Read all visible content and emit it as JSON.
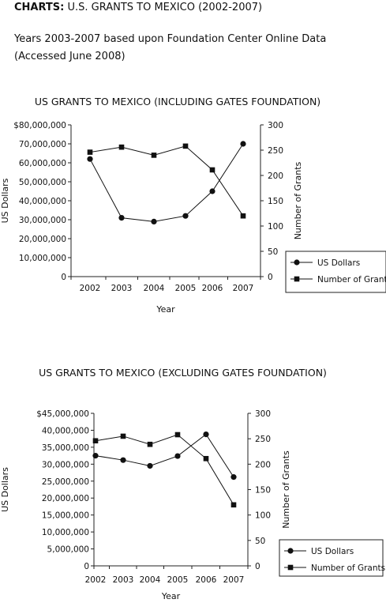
{
  "header": {
    "label_bold": "CHARTS:",
    "label_rest": " U.S. GRANTS TO MEXICO (2002-2007)",
    "source_line1": "Years 2003-2007 based upon Foundation Center Online Data",
    "source_line2": "(Accessed June 2008)"
  },
  "chart_data": [
    {
      "type": "line",
      "title": "US GRANTS TO MEXICO (INCLUDING GATES FOUNDATION)",
      "xlabel": "Year",
      "ylabel": "US Dollars",
      "y2label": "Number of Grants",
      "categories": [
        "2002",
        "2003",
        "2004",
        "2005",
        "2006",
        "2007"
      ],
      "ylim": [
        0,
        80000000
      ],
      "y2lim": [
        0,
        300
      ],
      "yticks": [
        "0",
        "10,000,000",
        "20,000,000",
        "30,000,000",
        "40,000,000",
        "50,000,000",
        "60,000,000",
        "70,000,000",
        "$80,000,000"
      ],
      "y2ticks": [
        "0",
        "50",
        "100",
        "150",
        "200",
        "250",
        "300"
      ],
      "legend_position": "bottom-right",
      "grid": false,
      "series": [
        {
          "name": "US Dollars",
          "axis": "left",
          "marker": "circle",
          "values": [
            62000000,
            31000000,
            29000000,
            32000000,
            45000000,
            70000000
          ]
        },
        {
          "name": "Number of Grants",
          "axis": "right",
          "marker": "square",
          "values": [
            246,
            256,
            240,
            258,
            211,
            120
          ]
        }
      ]
    },
    {
      "type": "line",
      "title": "US GRANTS TO MEXICO (EXCLUDING GATES FOUNDATION)",
      "xlabel": "Year",
      "ylabel": "US Dollars",
      "y2label": "Number of Grants",
      "categories": [
        "2002",
        "2003",
        "2004",
        "2005",
        "2006",
        "2007"
      ],
      "ylim": [
        0,
        45000000
      ],
      "y2lim": [
        0,
        300
      ],
      "yticks": [
        "0",
        "5,000,000",
        "10,000,000",
        "15,000,000",
        "20,000,000",
        "25,000,000",
        "30,000,000",
        "35,000,000",
        "40,000,000",
        "$45,000,000"
      ],
      "y2ticks": [
        "0",
        "50",
        "100",
        "150",
        "200",
        "250",
        "300"
      ],
      "legend_position": "bottom-right",
      "grid": false,
      "series": [
        {
          "name": "US Dollars",
          "axis": "left",
          "marker": "circle",
          "values": [
            32500000,
            31200000,
            29500000,
            32400000,
            38800000,
            26200000
          ]
        },
        {
          "name": "Number of Grants",
          "axis": "right",
          "marker": "square",
          "values": [
            246,
            255,
            239,
            258,
            211,
            120
          ]
        }
      ]
    }
  ]
}
